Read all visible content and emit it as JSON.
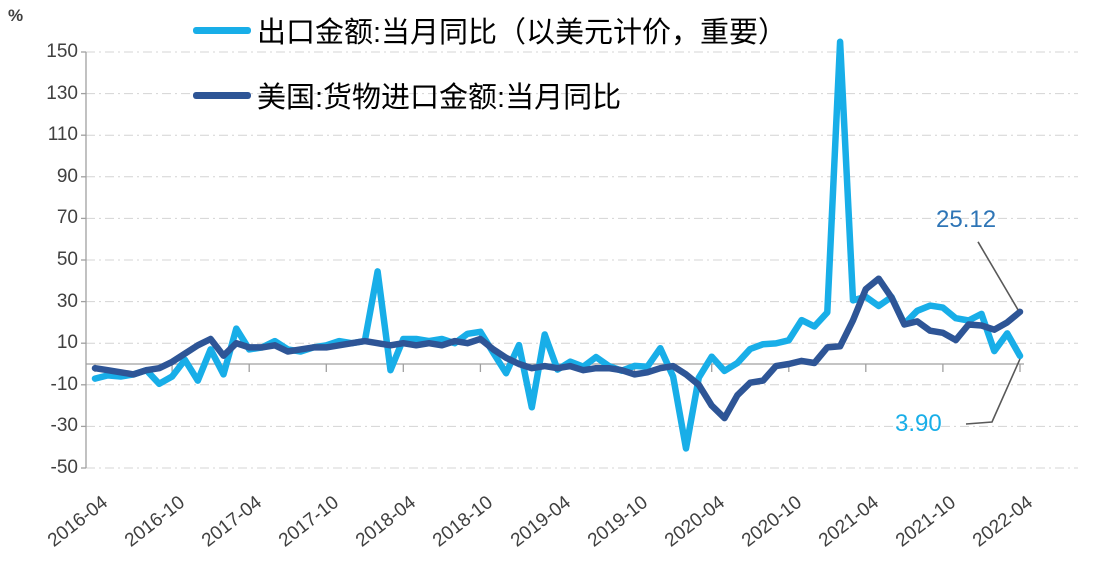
{
  "chart_data": {
    "type": "line",
    "title": "",
    "unit_label": "%",
    "legend_position": "top-left overlay, two rows",
    "grid": "horizontal dash-dot gridlines at every labeled tick; solid gray line at 0; left y-axis with tick marks; x tick marks on the zero line",
    "ylim": [
      -50,
      150
    ],
    "yticks": [
      150,
      130,
      110,
      90,
      70,
      50,
      30,
      10,
      -10,
      -30,
      -50
    ],
    "xtick_labels": [
      "2016-04",
      "2016-10",
      "2017-04",
      "2017-10",
      "2018-04",
      "2018-10",
      "2019-04",
      "2019-10",
      "2020-04",
      "2020-10",
      "2021-04",
      "2021-10",
      "2022-04"
    ],
    "x_months": [
      "2016-04",
      "2016-05",
      "2016-06",
      "2016-07",
      "2016-08",
      "2016-09",
      "2016-10",
      "2016-11",
      "2016-12",
      "2017-01",
      "2017-02",
      "2017-03",
      "2017-04",
      "2017-05",
      "2017-06",
      "2017-07",
      "2017-08",
      "2017-09",
      "2017-10",
      "2017-11",
      "2017-12",
      "2018-01",
      "2018-02",
      "2018-03",
      "2018-04",
      "2018-05",
      "2018-06",
      "2018-07",
      "2018-08",
      "2018-09",
      "2018-10",
      "2018-11",
      "2018-12",
      "2019-01",
      "2019-02",
      "2019-03",
      "2019-04",
      "2019-05",
      "2019-06",
      "2019-07",
      "2019-08",
      "2019-09",
      "2019-10",
      "2019-11",
      "2019-12",
      "2020-01",
      "2020-02",
      "2020-03",
      "2020-04",
      "2020-05",
      "2020-06",
      "2020-07",
      "2020-08",
      "2020-09",
      "2020-10",
      "2020-11",
      "2020-12",
      "2021-01",
      "2021-02",
      "2021-03",
      "2021-04",
      "2021-05",
      "2021-06",
      "2021-07",
      "2021-08",
      "2021-09",
      "2021-10",
      "2021-11",
      "2021-12",
      "2022-01",
      "2022-02",
      "2022-03",
      "2022-04"
    ],
    "series": [
      {
        "name": "出口金额:当月同比（以美元计价，重要）",
        "color": "#18AEE8",
        "values": [
          -7,
          -5.5,
          -6,
          -5,
          -3,
          -9.5,
          -6,
          2,
          -8,
          7,
          -5,
          17,
          7,
          8,
          11,
          7,
          6,
          8,
          9,
          11,
          10,
          11,
          44.5,
          -3,
          12,
          12,
          11,
          12,
          10,
          14.5,
          15.5,
          5.4,
          -4.4,
          9.1,
          -20.8,
          14.2,
          -2.7,
          1.1,
          -1.3,
          3.3,
          -1,
          -3.2,
          -0.9,
          -1.3,
          7.6,
          -6,
          -40.6,
          -6.6,
          3.5,
          -3.3,
          0.5,
          7.2,
          9.5,
          9.9,
          11.4,
          21.1,
          18.1,
          24.8,
          154.9,
          30.6,
          32.3,
          27.9,
          32.2,
          19.3,
          25.6,
          28.1,
          27.1,
          22,
          20.9,
          24.1,
          6.2,
          14.7,
          3.9
        ]
      },
      {
        "name": "美国:货物进口金额:当月同比",
        "color": "#2E5596",
        "values": [
          -2,
          -3,
          -4,
          -5,
          -3,
          -2,
          1,
          5,
          9,
          12,
          4,
          10,
          8,
          8,
          9,
          6,
          7,
          8,
          8,
          9,
          10,
          11,
          10,
          9,
          10,
          9,
          10,
          9,
          11,
          10,
          12,
          7,
          3,
          0,
          -2,
          -1,
          -2,
          -1,
          -3,
          -2,
          -2,
          -3,
          -5,
          -4,
          -2,
          -1,
          -5,
          -10,
          -20,
          -26,
          -15,
          -9,
          -8,
          -1,
          0,
          1.5,
          0.5,
          8,
          8.5,
          21,
          36,
          41,
          32,
          19,
          20.5,
          16,
          15,
          11.5,
          19,
          18.5,
          16.5,
          20,
          25.12
        ]
      }
    ],
    "annotations": [
      {
        "series_index": 1,
        "label": "25.12",
        "color": "#2E75B6"
      },
      {
        "series_index": 0,
        "label": "3.90",
        "color": "#18AEE8"
      }
    ]
  }
}
